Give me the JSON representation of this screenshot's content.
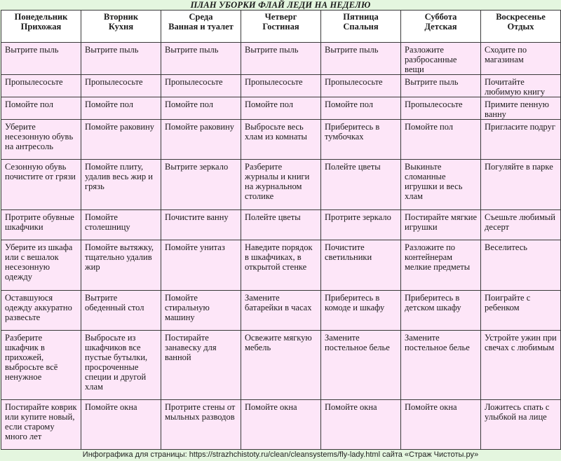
{
  "title": "ПЛАН УБОРКИ ФЛАЙ ЛЕДИ НА НЕДЕЛЮ",
  "columns": [
    {
      "day": "Понедельник",
      "zone": "Прихожая"
    },
    {
      "day": "Вторник",
      "zone": "Кухня"
    },
    {
      "day": "Среда",
      "zone": "Ванная и туалет"
    },
    {
      "day": "Четверг",
      "zone": "Гостиная"
    },
    {
      "day": "Пятница",
      "zone": "Спальня"
    },
    {
      "day": "Суббота",
      "zone": "Детская"
    },
    {
      "day": "Воскресенье",
      "zone": "Отдых"
    }
  ],
  "rows": [
    [
      "Вытрите пыль",
      "Вытрите пыль",
      "Вытрите пыль",
      "Вытрите пыль",
      "Вытрите пыль",
      "Разложите разбросанные вещи",
      "Сходите по магазинам"
    ],
    [
      "Пропылесосьте",
      "Пропылесосьте",
      "Пропылесосьте",
      "Пропылесосьте",
      "Пропылесосьте",
      "Вытрите пыль",
      "Почитайте любимую книгу"
    ],
    [
      "Помойте пол",
      "Помойте пол",
      "Помойте пол",
      "Помойте пол",
      "Помойте пол",
      "Пропылесосьте",
      "Примите пенную ванну"
    ],
    [
      "Уберите несезонную обувь на антресоль",
      "Помойте раковину",
      "Помойте раковину",
      "Выбросьте весь хлам из комнаты",
      "Приберитесь в тумбочках",
      "Помойте пол",
      "Пригласите подруг"
    ],
    [
      "Сезонную обувь почистите от грязи",
      "Помойте плиту, удалив весь жир и грязь",
      "Вытрите зеркало",
      "Разберите журналы и книги на журнальном столике",
      "Полейте цветы",
      "Выкиньте сломанные игрушки и весь хлам",
      "Погуляйте в парке"
    ],
    [
      "Протрите обувные шкафчики",
      "Помойте столешницу",
      "Почистите ванну",
      "Полейте цветы",
      "Протрите зеркало",
      "Постирайте мягкие игрушки",
      "Съешьте любимый десерт"
    ],
    [
      "Уберите из шкафа или с вешалок несезонную одежду",
      "Помойте вытяжку, тщательно удалив жир",
      "Помойте унитаз",
      "Наведите порядок в шкафчиках, в открытой стенке",
      "Почистите светильники",
      "Разложите по контейнерам мелкие предметы",
      "Веселитесь"
    ],
    [
      "Оставшуюся одежду аккуратно развесьте",
      "Вытрите обеденный стол",
      "Помойте стиральную машину",
      "Замените батарейки в часах",
      "Приберитесь в комоде и шкафу",
      "Приберитесь в детском шкафу",
      "Поиграйте с ребенком"
    ],
    [
      "Разберите шкафчик в прихожей, выбросьте всё ненужное",
      "Выбросьте из шкафчиков все пустые бутылки, просроченные специи и другой хлам",
      "Постирайте занавеску для ванной",
      "Освежите мягкую мебель",
      "Замените постельное белье",
      "Замените постельное белье",
      "Устройте ужин при свечах с любимым"
    ],
    [
      "Постирайте коврик или купите новый, если старому много лет",
      "Помойте окна",
      "Протрите стены от мыльных разводов",
      "Помойте окна",
      "Помойте окна",
      "Помойте окна",
      "Ложитесь спать с улыбкой на лице"
    ]
  ],
  "caption": "Инфографика для страницы: https://strazhchistoty.ru/clean/cleansystems/fly-lady.html сайта «Страж Чистоты.ру»"
}
